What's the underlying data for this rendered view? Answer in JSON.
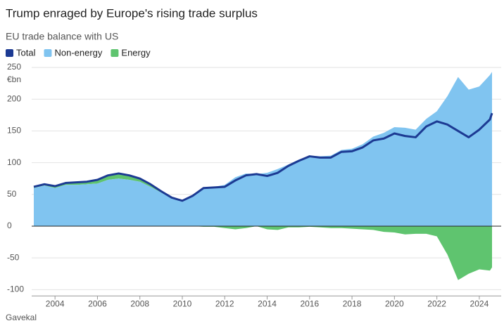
{
  "chart_data": {
    "type": "area",
    "title": "Trump enraged by Europe's rising trade surplus",
    "subtitle": "EU trade balance with US",
    "y_label": "€bn",
    "source": "Gavekal",
    "x": [
      2003,
      2003.5,
      2004,
      2004.5,
      2005,
      2005.5,
      2006,
      2006.5,
      2007,
      2007.5,
      2008,
      2008.5,
      2009,
      2009.5,
      2010,
      2010.5,
      2011,
      2011.5,
      2012,
      2012.5,
      2013,
      2013.5,
      2014,
      2014.5,
      2015,
      2015.5,
      2016,
      2016.5,
      2017,
      2017.5,
      2018,
      2018.5,
      2019,
      2019.5,
      2020,
      2020.5,
      2021,
      2021.5,
      2022,
      2022.5,
      2023,
      2023.5,
      2024,
      2024.5,
      2024.6
    ],
    "series": [
      {
        "name": "Total",
        "color": "#1c3a93",
        "values": [
          62,
          66,
          63,
          68,
          69,
          70,
          73,
          80,
          83,
          80,
          75,
          66,
          55,
          45,
          40,
          48,
          60,
          61,
          62,
          72,
          80,
          82,
          79,
          84,
          95,
          103,
          110,
          108,
          108,
          117,
          118,
          124,
          135,
          138,
          146,
          142,
          140,
          157,
          165,
          160,
          150,
          140,
          152,
          168,
          178
        ]
      },
      {
        "name": "Non-energy",
        "color": "#80c4f0",
        "values": [
          60,
          64,
          60,
          65,
          65,
          66,
          67,
          73,
          75,
          73,
          70,
          62,
          53,
          44,
          40,
          48,
          61,
          62,
          65,
          77,
          83,
          82,
          84,
          90,
          97,
          105,
          111,
          110,
          111,
          120,
          122,
          129,
          141,
          147,
          156,
          155,
          152,
          169,
          181,
          205,
          235,
          215,
          220,
          238,
          243
        ]
      },
      {
        "name": "Energy",
        "color": "#5fc46f",
        "values": [
          2,
          2,
          3,
          3,
          4,
          4,
          6,
          7,
          8,
          7,
          5,
          4,
          2,
          1,
          0,
          0,
          -1,
          -1,
          -3,
          -5,
          -3,
          0,
          -5,
          -6,
          -2,
          -2,
          -1,
          -2,
          -3,
          -3,
          -4,
          -5,
          -6,
          -9,
          -10,
          -13,
          -12,
          -12,
          -16,
          -45,
          -85,
          -75,
          -68,
          -70,
          -65
        ]
      }
    ],
    "xlim": [
      2002.9,
      2024.7
    ],
    "xticks": [
      2004,
      2006,
      2008,
      2010,
      2012,
      2014,
      2016,
      2018,
      2020,
      2022,
      2024
    ],
    "ylim": [
      -110,
      255
    ],
    "yticks": [
      250,
      200,
      150,
      100,
      50,
      0,
      -50,
      -100
    ],
    "grid": true
  }
}
